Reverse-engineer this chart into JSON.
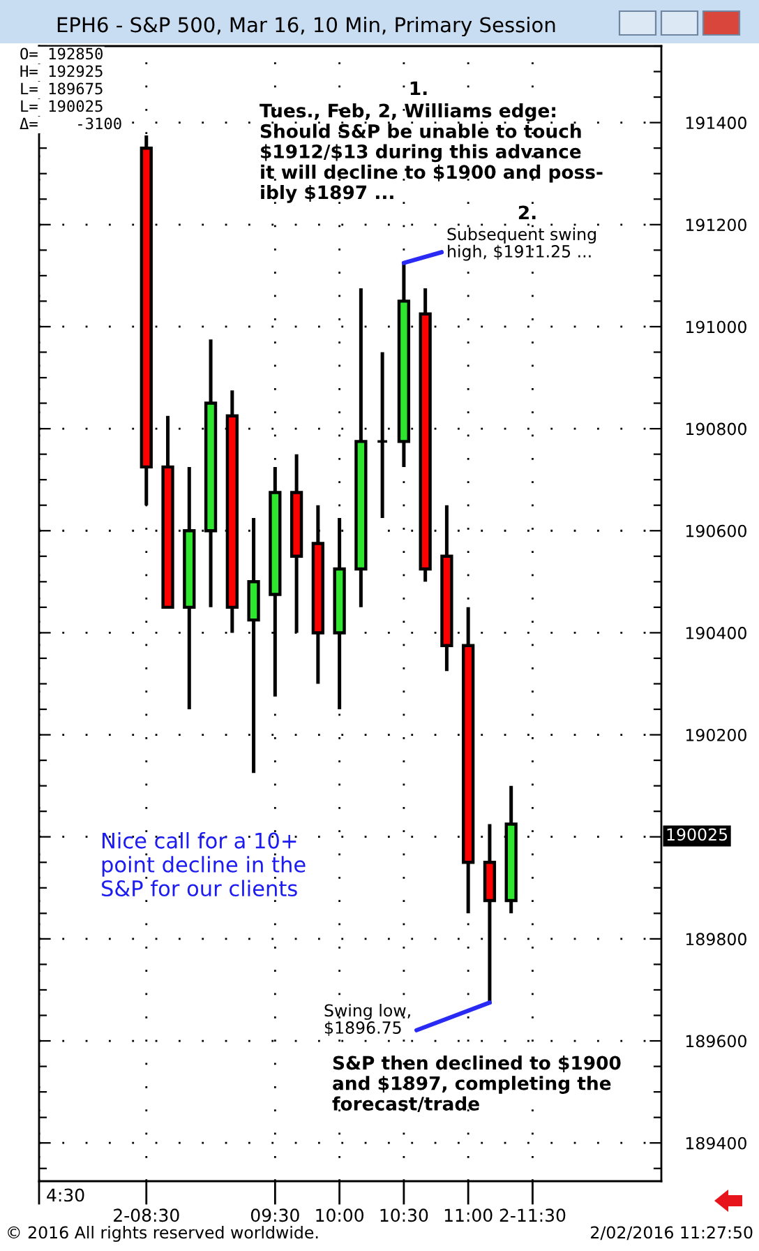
{
  "chart_data": {
    "type": "candlestick",
    "title": "EPH6 - S&P 500, Mar 16, 10 Min, Primary Session",
    "x": [
      8.5,
      8.6667,
      8.8333,
      9,
      9.1667,
      9.3333,
      9.5,
      9.6667,
      9.8333,
      10,
      10.1667,
      10.3333,
      10.5,
      10.6667,
      10.8333,
      11,
      11.1667,
      11.3333
    ],
    "ohlc": [
      [
        191350,
        191375,
        190650,
        190725
      ],
      [
        190725,
        190825,
        190450,
        190450
      ],
      [
        190450,
        190725,
        190250,
        190600
      ],
      [
        190600,
        190975,
        190450,
        190850
      ],
      [
        190825,
        190875,
        190400,
        190450
      ],
      [
        190425,
        190625,
        190125,
        190500
      ],
      [
        190475,
        190725,
        190275,
        190675
      ],
      [
        190675,
        190750,
        190400,
        190550
      ],
      [
        190575,
        190650,
        190300,
        190400
      ],
      [
        190400,
        190625,
        190250,
        190525
      ],
      [
        190525,
        191075,
        190450,
        190775
      ],
      [
        190775,
        190950,
        190625,
        190775
      ],
      [
        190775,
        191125,
        190725,
        191050
      ],
      [
        191025,
        191075,
        190500,
        190525
      ],
      [
        190550,
        190650,
        190325,
        190375
      ],
      [
        190375,
        190450,
        189850,
        189950
      ],
      [
        189950,
        190025,
        189675,
        189875
      ],
      [
        189875,
        190100,
        189850,
        190025
      ]
    ],
    "colors": [
      "#ff0000",
      "#ff0000",
      "#2ee62e",
      "#2ee62e",
      "#ff0000",
      "#2ee62e",
      "#2ee62e",
      "#ff0000",
      "#ff0000",
      "#2ee62e",
      "#2ee62e",
      "#000000",
      "#2ee62e",
      "#ff0000",
      "#ff0000",
      "#ff0000",
      "#ff0000",
      "#2ee62e"
    ],
    "xlim": [
      7.6667,
      12.5
    ],
    "xticks": [
      {
        "value": 7.6667,
        "label": null
      },
      {
        "value": 8.5,
        "label": "2-08:30"
      },
      {
        "value": 9.5,
        "label": "09:30"
      },
      {
        "value": 10,
        "label": "10:00"
      },
      {
        "value": 10.5,
        "label": "10:30"
      },
      {
        "value": 11,
        "label": "11:00"
      },
      {
        "value": 11.5,
        "label": "2-11:30"
      }
    ],
    "ylim": [
      189325,
      191550
    ],
    "yticks": [
      189400,
      189600,
      189800,
      {
        "value": 190000,
        "label": null
      },
      190200,
      190400,
      190600,
      190800,
      191000,
      191200,
      191400
    ],
    "grid": true,
    "annotations": [
      "O= 192850",
      "H= 192925",
      "L= 189675",
      "L= 190025",
      "Δ=    -3100",
      "1.",
      "Tues., Feb, 2, Williams edge:\nShould S&P be unable to touch\n$1912/$13 during this advance\nit will decline to $1900 and poss-\nibly $1897 ...",
      "2.",
      {
        "text": "Subsequent swing\nhigh, $1911.25 ...",
        "x": 10.5,
        "y": 191125
      },
      "Nice call for a 10+\npoint decline in the\nS&P for our clients",
      {
        "text": "Swing low,\n$1896.75",
        "x": 11.1667,
        "y": 189675
      },
      "S&P then declined to $1900\nand $1897, completing the\nforecast/trade",
      "190025",
      "© 2016 All rights reserved worldwide.",
      "2/02/2016 11:27:50",
      "4:30"
    ]
  }
}
